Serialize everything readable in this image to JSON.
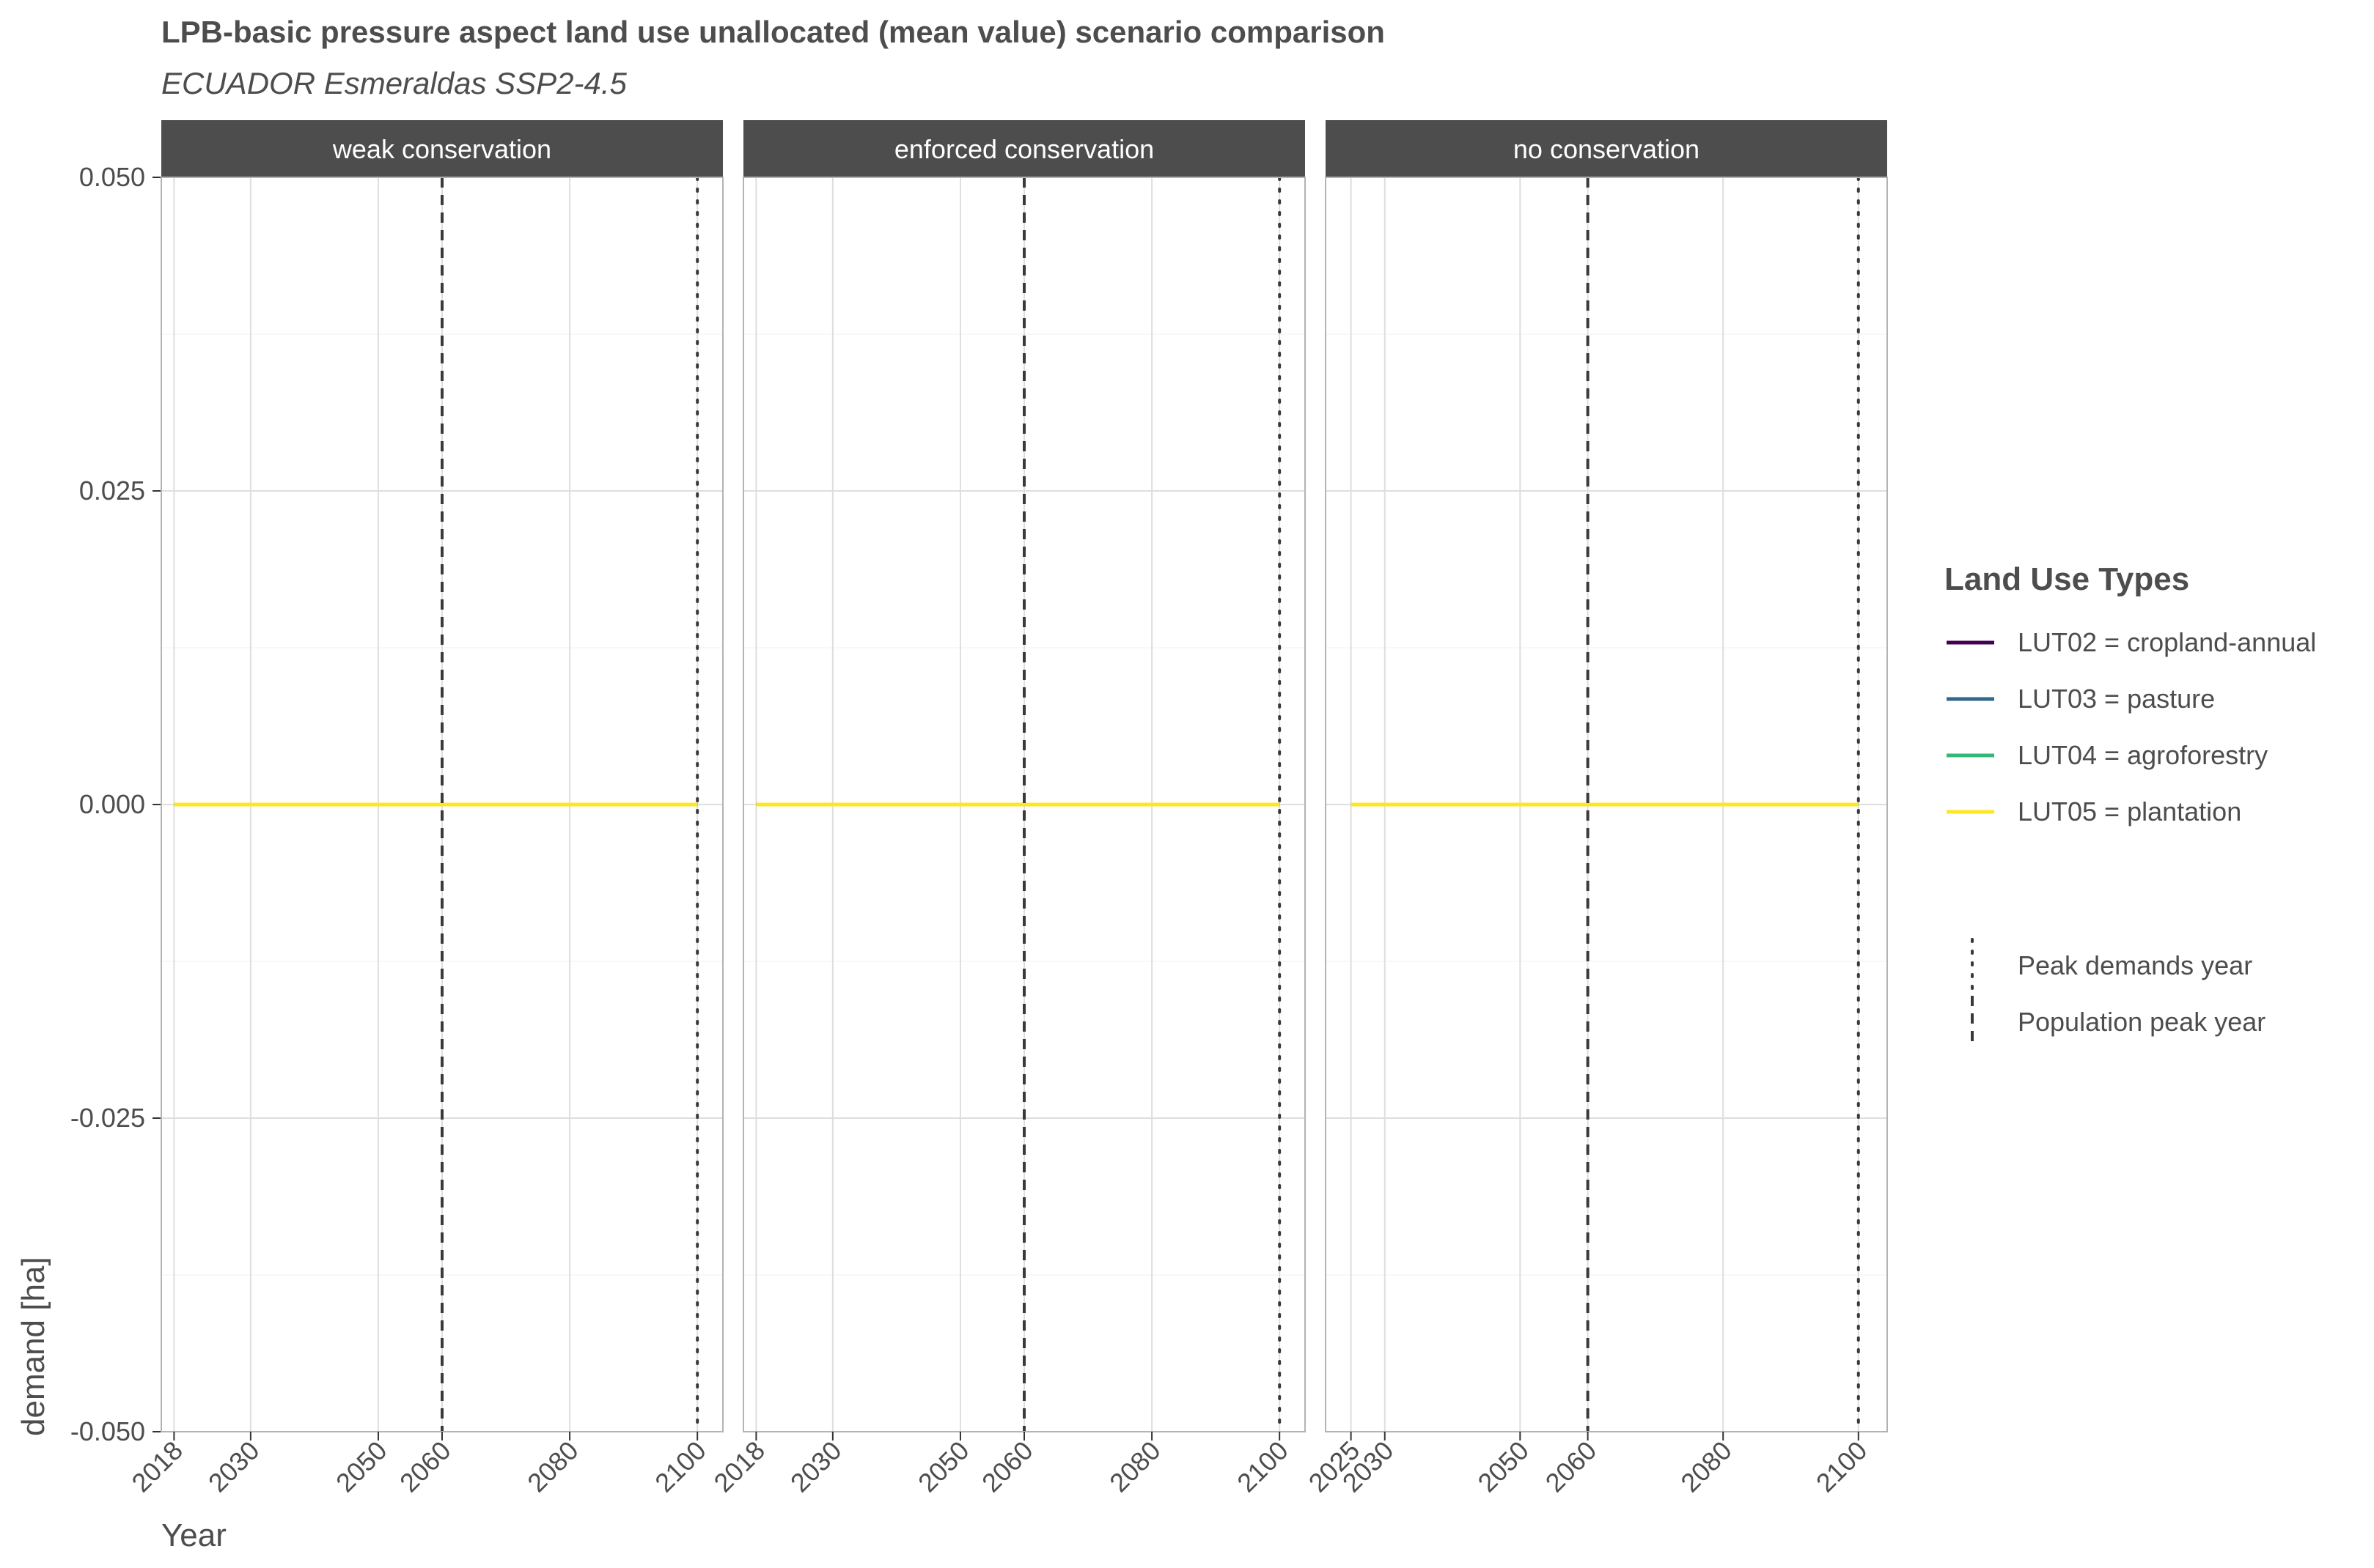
{
  "chart_data": {
    "type": "line",
    "title": "LPB-basic pressure aspect land use unallocated (mean value) scenario comparison",
    "subtitle": "ECUADOR Esmeraldas SSP2-4.5",
    "xlabel": "Year",
    "ylabel": "demand [ha]",
    "ylim": [
      -0.05,
      0.05
    ],
    "yticks": [
      -0.05,
      -0.025,
      0,
      0.025,
      0.05
    ],
    "ytick_labels": [
      "-0.050",
      "-0.025",
      "0.000",
      "0.025",
      "0.050"
    ],
    "grid": true,
    "legend_position": "right",
    "legend_title": "Land Use Types",
    "series_legend": [
      {
        "label": "LUT02 = cropland-annual",
        "color": "#440154"
      },
      {
        "label": "LUT03 = pasture",
        "color": "#31688e"
      },
      {
        "label": "LUT04 = agroforestry",
        "color": "#35b779"
      },
      {
        "label": "LUT05 = plantation",
        "color": "#fde725"
      }
    ],
    "line_legend": [
      {
        "label": "Peak demands year",
        "style": "dotted"
      },
      {
        "label": "Population peak year",
        "style": "dashed"
      }
    ],
    "panels": [
      {
        "strip": "weak conservation",
        "xlim": [
          2016,
          2104
        ],
        "xticks": [
          2018,
          2030,
          2050,
          2060,
          2080,
          2100
        ],
        "x_start": 2018,
        "x_end": 2100,
        "value": 0,
        "population_peak_year": 2060,
        "peak_demands_year": 2100
      },
      {
        "strip": "enforced conservation",
        "xlim": [
          2016,
          2104
        ],
        "xticks": [
          2018,
          2030,
          2050,
          2060,
          2080,
          2100
        ],
        "x_start": 2018,
        "x_end": 2100,
        "value": 0,
        "population_peak_year": 2060,
        "peak_demands_year": 2100
      },
      {
        "strip": "no conservation",
        "xlim": [
          2021.25,
          2104.25
        ],
        "xticks": [
          2025,
          2030,
          2050,
          2060,
          2080,
          2100
        ],
        "x_start": 2025,
        "x_end": 2100,
        "value": 0,
        "population_peak_year": 2060,
        "peak_demands_year": 2100
      }
    ]
  }
}
